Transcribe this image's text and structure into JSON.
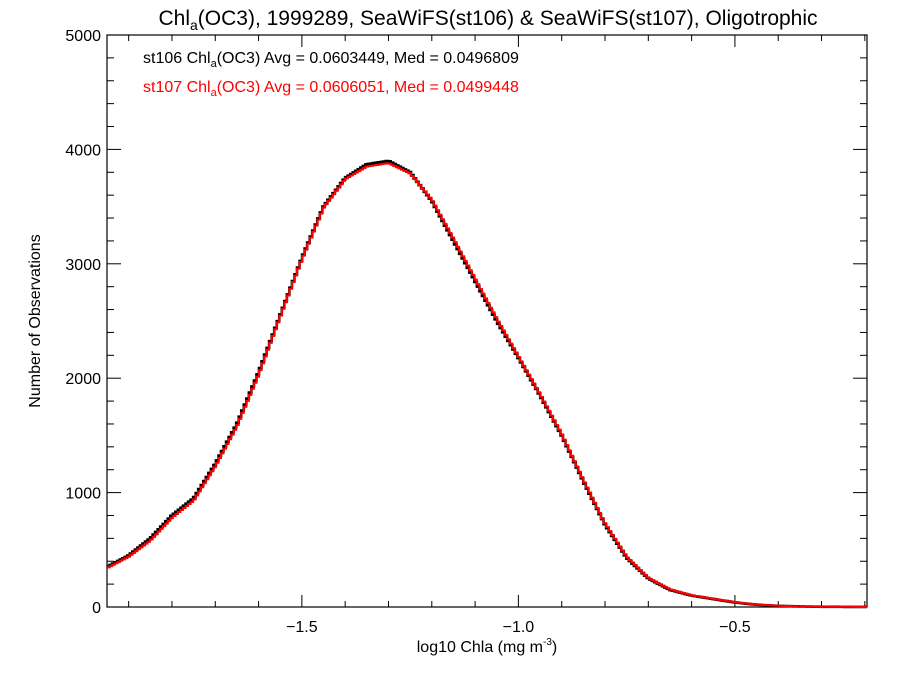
{
  "chart_data": {
    "type": "line",
    "title": {
      "pre": "Chl",
      "sub": "a",
      "post": "(OC3), 1999289, SeaWiFS(st106) & SeaWiFS(st107), Oligotrophic"
    },
    "xlabel": {
      "pre": "log10 Chla (mg m",
      "sup": "-3",
      "post": ")"
    },
    "ylabel": "Number of Observations",
    "xlim": [
      -1.95,
      -0.195
    ],
    "ylim": [
      0,
      5000
    ],
    "x_ticks": [
      -1.5,
      -1.0,
      -0.5
    ],
    "x_tick_labels": [
      "−1.5",
      "−1.0",
      "−0.5"
    ],
    "y_ticks": [
      0,
      1000,
      2000,
      3000,
      4000,
      5000
    ],
    "y_tick_labels": [
      "0",
      "1000",
      "2000",
      "3000",
      "4000",
      "5000"
    ],
    "grid": false,
    "annotations": [
      {
        "pre": "st106 Chl",
        "sub": "a",
        "post": "(OC3) Avg = 0.0603449, Med = 0.0496809",
        "color": "#000000"
      },
      {
        "pre": "st107 Chl",
        "sub": "a",
        "post": "(OC3) Avg = 0.0606051, Med = 0.0499448",
        "color": "#ff0000"
      }
    ],
    "series": [
      {
        "color": "#000000",
        "x": [
          -1.95,
          -1.9,
          -1.85,
          -1.8,
          -1.75,
          -1.7,
          -1.65,
          -1.6,
          -1.55,
          -1.5,
          -1.45,
          -1.4,
          -1.35,
          -1.3,
          -1.25,
          -1.2,
          -1.15,
          -1.1,
          -1.05,
          -1.0,
          -0.95,
          -0.9,
          -0.85,
          -0.8,
          -0.75,
          -0.7,
          -0.65,
          -0.6,
          -0.55,
          -0.5,
          -0.45,
          -0.4,
          -0.35,
          -0.3,
          -0.25,
          -0.195
        ],
        "y": [
          350,
          450,
          600,
          800,
          950,
          1250,
          1600,
          2050,
          2550,
          3050,
          3500,
          3750,
          3870,
          3900,
          3800,
          3550,
          3200,
          2850,
          2500,
          2180,
          1850,
          1500,
          1100,
          720,
          430,
          250,
          150,
          100,
          70,
          40,
          20,
          10,
          5,
          2,
          1,
          0
        ]
      },
      {
        "color": "#ff0000",
        "x": [
          -1.95,
          -1.9,
          -1.85,
          -1.8,
          -1.75,
          -1.7,
          -1.65,
          -1.6,
          -1.55,
          -1.5,
          -1.45,
          -1.4,
          -1.35,
          -1.3,
          -1.25,
          -1.2,
          -1.15,
          -1.1,
          -1.05,
          -1.0,
          -0.95,
          -0.9,
          -0.85,
          -0.8,
          -0.75,
          -0.7,
          -0.65,
          -0.6,
          -0.55,
          -0.5,
          -0.45,
          -0.4,
          -0.35,
          -0.3,
          -0.25,
          -0.195
        ],
        "y": [
          340,
          440,
          580,
          780,
          930,
          1230,
          1580,
          2030,
          2540,
          3040,
          3490,
          3740,
          3850,
          3880,
          3790,
          3560,
          3220,
          2870,
          2520,
          2190,
          1860,
          1510,
          1110,
          730,
          440,
          255,
          155,
          102,
          72,
          42,
          21,
          11,
          5,
          2,
          1,
          0
        ]
      }
    ]
  }
}
